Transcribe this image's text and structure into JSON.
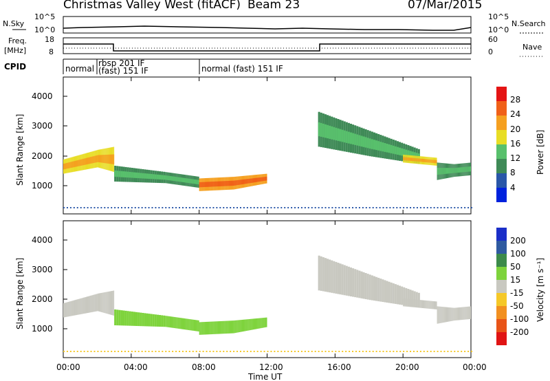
{
  "header": {
    "title": "Christmas Valley West (fitACF)",
    "beam": "Beam 23",
    "date": "07/Mar/2015"
  },
  "noise_panel": {
    "left_label": "N.Sky",
    "left_ticks": [
      "10^5",
      "10^0"
    ],
    "right_ticks": [
      "10^5",
      "10^0"
    ],
    "right_label": "N.Search"
  },
  "freq_panel": {
    "left_label_1": "Freq.",
    "left_label_2": "[MHz]",
    "left_ticks": [
      "18",
      "8"
    ],
    "right_ticks": [
      "60",
      "0"
    ],
    "right_label": "Nave"
  },
  "cpid_panel": {
    "label": "CPID",
    "modes": [
      {
        "name": "normal",
        "start_hour": 0
      },
      {
        "name": "rbsp 201 IF",
        "start_hour": 2.0
      },
      {
        "name": "(fast) 151 IF",
        "start_hour": 2.0
      },
      {
        "name": "normal (fast) 151 IF",
        "start_hour": 8.0
      }
    ]
  },
  "x_axis": {
    "label": "Time UT",
    "ticks": [
      "00:00",
      "04:00",
      "08:00",
      "12:00",
      "16:00",
      "20:00",
      "00:00"
    ]
  },
  "power_panel": {
    "ylabel": "Slant Range [km]",
    "yticks": [
      "1000",
      "2000",
      "3000",
      "4000"
    ],
    "colorbar_label": "Power [dB]",
    "colorbar_ticks": [
      "28",
      "24",
      "20",
      "16",
      "12",
      "8",
      "4"
    ],
    "colors": [
      "#0022dd",
      "#2a57a8",
      "#3f8a57",
      "#58c06c",
      "#e8dd25",
      "#f5a020",
      "#f06018",
      "#e41414"
    ]
  },
  "velocity_panel": {
    "ylabel": "Slant Range [km]",
    "yticks": [
      "1000",
      "2000",
      "3000",
      "4000"
    ],
    "colorbar_label": "Velocity [m s⁻¹]",
    "colorbar_ticks": [
      "200",
      "100",
      "50",
      "15",
      "-15",
      "-50",
      "-100",
      "-200"
    ],
    "colors": [
      "#1a2ec8",
      "#2f5aa0",
      "#3c8a4a",
      "#7ed33c",
      "#c8c8c0",
      "#f5c828",
      "#f29020",
      "#e85418",
      "#e01414"
    ]
  },
  "chart_data": {
    "type": "heatmap",
    "x_range_hours": [
      0,
      24
    ],
    "y_range_km": [
      180,
      4500
    ],
    "power_bands": [
      {
        "points": [
          [
            0,
            1450,
            1900
          ],
          [
            2,
            1650,
            2200
          ],
          [
            3,
            1500,
            2300
          ]
        ],
        "db": 22
      },
      {
        "points": [
          [
            3,
            1200,
            1700
          ],
          [
            6,
            1150,
            1500
          ],
          [
            8,
            1000,
            1350
          ]
        ],
        "db": 14
      },
      {
        "points": [
          [
            8,
            900,
            1300
          ],
          [
            10,
            950,
            1350
          ],
          [
            12,
            1150,
            1450
          ]
        ],
        "db": 26
      },
      {
        "points": [
          [
            15,
            2300,
            3400
          ],
          [
            18,
            2000,
            2800
          ],
          [
            21,
            1750,
            2200
          ]
        ],
        "db": 12
      },
      {
        "points": [
          [
            20,
            1800,
            2050
          ],
          [
            21,
            1750,
            2000
          ],
          [
            22,
            1700,
            1950
          ]
        ],
        "db": 22
      },
      {
        "points": [
          [
            22,
            1250,
            1800
          ],
          [
            23,
            1350,
            1750
          ],
          [
            24,
            1400,
            1800
          ]
        ],
        "db": 12
      }
    ]
  }
}
